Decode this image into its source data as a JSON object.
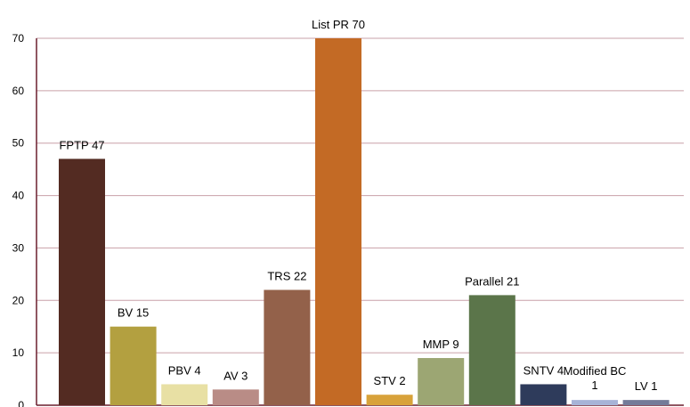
{
  "chart_data": {
    "type": "bar",
    "title": "",
    "xlabel": "",
    "ylabel": "",
    "ylim": [
      0,
      70
    ],
    "yticks": [
      "0",
      "10",
      "20",
      "30",
      "40",
      "50",
      "60",
      "70"
    ],
    "grid": true,
    "legend": "none",
    "bars": [
      {
        "label": "FPTP 47",
        "value": 47,
        "color": "#532b22"
      },
      {
        "label": "BV 15",
        "value": 15,
        "color": "#b3a040"
      },
      {
        "label": "PBV 4",
        "value": 4,
        "color": "#e8e0a4"
      },
      {
        "label": "AV 3",
        "value": 3,
        "color": "#b98c86"
      },
      {
        "label": "TRS 22",
        "value": 22,
        "color": "#93614a"
      },
      {
        "label": "List PR 70",
        "value": 70,
        "color": "#c36a25"
      },
      {
        "label": "STV 2",
        "value": 2,
        "color": "#d8a23a"
      },
      {
        "label": "MMP 9",
        "value": 9,
        "color": "#9ca673"
      },
      {
        "label": "Parallel 21",
        "value": 21,
        "color": "#5b754a"
      },
      {
        "label": "SNTV 4",
        "value": 4,
        "color": "#2e3b5b"
      },
      {
        "label": "Modified BC 1",
        "label_lines": [
          "Modified BC",
          "1"
        ],
        "value": 1,
        "color": "#a7b3d7"
      },
      {
        "label": "LV 1",
        "value": 1,
        "color": "#747b99"
      }
    ],
    "colors": {
      "grid": "#c9a0a8",
      "axis": "#6b1f2e"
    }
  }
}
